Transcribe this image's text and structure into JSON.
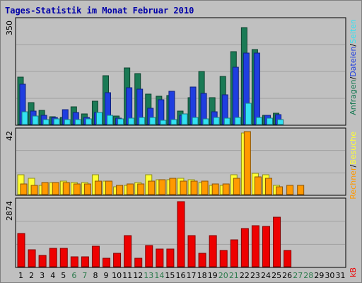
{
  "title": "Tages-Statistik im Monat Februar 2010",
  "colors": {
    "frame_bg": "#c0c0c0",
    "panel_bg": "#c0c0c0",
    "grid": "#a0a0a0",
    "weekday_label": "#000000",
    "weekend_label": "#2b7a4b",
    "anfragen": "#1a7a55",
    "dateien": "#1f3ee0",
    "seiten": "#33e2f2",
    "besuche": "#ffff33",
    "rechner": "#ff9900",
    "kb": "#ee0000"
  },
  "chart_data": [
    {
      "type": "bar",
      "name": "top",
      "ymax_label": "350",
      "ylim": [
        0,
        350
      ],
      "legend": [
        "Anfragen",
        "/",
        "Dateien",
        "/",
        "Seiten"
      ],
      "series": [
        {
          "name": "Anfragen",
          "color_key": "anfragen",
          "values": [
            160,
            75,
            48,
            27,
            25,
            60,
            35,
            80,
            165,
            28,
            192,
            172,
            102,
            95,
            98,
            46,
            90,
            180,
            90,
            163,
            248,
            328,
            255,
            31,
            38,
            0,
            0,
            0,
            0,
            0,
            0
          ]
        },
        {
          "name": "Dateien",
          "color_key": "dateien",
          "values": [
            137,
            45,
            30,
            25,
            50,
            40,
            25,
            40,
            108,
            22,
            124,
            120,
            55,
            85,
            112,
            31,
            128,
            106,
            42,
            100,
            193,
            243,
            242,
            30,
            33,
            0,
            0,
            0,
            0,
            0,
            0
          ]
        },
        {
          "name": "Seiten",
          "color_key": "seiten",
          "values": [
            42,
            28,
            16,
            20,
            16,
            17,
            18,
            40,
            30,
            20,
            22,
            25,
            25,
            15,
            16,
            35,
            25,
            20,
            25,
            22,
            25,
            72,
            25,
            22,
            17,
            0,
            0,
            0,
            0,
            0,
            0
          ]
        }
      ]
    },
    {
      "type": "bar",
      "name": "middle",
      "ymax_label": "42",
      "ylim": [
        0,
        42
      ],
      "legend": [
        "Rechner",
        "/",
        "Besuche"
      ],
      "series": [
        {
          "name": "Besuche",
          "color_key": "besuche",
          "values": [
            13,
            11,
            6,
            8,
            9,
            8,
            8,
            13,
            9,
            5,
            6,
            8,
            13,
            10,
            10,
            11,
            10,
            8,
            6,
            6,
            13,
            41,
            14,
            13,
            6,
            0,
            0,
            0,
            0,
            0,
            0
          ]
        },
        {
          "name": "Rechner",
          "color_key": "rechner",
          "values": [
            7,
            6,
            8,
            8,
            8,
            7,
            7,
            9,
            9,
            6,
            7,
            7,
            9,
            10,
            11,
            9,
            9,
            9,
            7,
            7,
            11,
            42,
            12,
            11,
            5,
            6,
            6,
            0,
            0,
            0,
            0
          ]
        }
      ]
    },
    {
      "type": "bar",
      "name": "bottom",
      "ymax_label": "2874",
      "ylim": [
        0,
        2874
      ],
      "legend": [
        "kB"
      ],
      "series": [
        {
          "name": "kB",
          "color_key": "kb",
          "values": [
            1480,
            740,
            500,
            820,
            820,
            440,
            450,
            915,
            360,
            590,
            1390,
            380,
            930,
            770,
            770,
            2874,
            1360,
            590,
            1370,
            730,
            1190,
            1700,
            1820,
            1790,
            2180,
            710,
            0,
            0,
            0,
            0,
            0
          ]
        }
      ]
    }
  ],
  "x_labels": [
    {
      "text": "1",
      "weekend": false
    },
    {
      "text": "2",
      "weekend": false
    },
    {
      "text": "3",
      "weekend": false
    },
    {
      "text": "4",
      "weekend": false
    },
    {
      "text": "5",
      "weekend": false
    },
    {
      "text": "6",
      "weekend": true
    },
    {
      "text": "7",
      "weekend": true
    },
    {
      "text": "8",
      "weekend": false
    },
    {
      "text": "9",
      "weekend": false
    },
    {
      "text": "10",
      "weekend": false
    },
    {
      "text": "11",
      "weekend": false
    },
    {
      "text": "12",
      "weekend": false
    },
    {
      "text": "13",
      "weekend": true
    },
    {
      "text": "14",
      "weekend": true
    },
    {
      "text": "15",
      "weekend": false
    },
    {
      "text": "16",
      "weekend": false
    },
    {
      "text": "17",
      "weekend": false
    },
    {
      "text": "18",
      "weekend": false
    },
    {
      "text": "19",
      "weekend": false
    },
    {
      "text": "20",
      "weekend": true
    },
    {
      "text": "21",
      "weekend": true
    },
    {
      "text": "22",
      "weekend": false
    },
    {
      "text": "23",
      "weekend": false
    },
    {
      "text": "24",
      "weekend": false
    },
    {
      "text": "25",
      "weekend": false
    },
    {
      "text": "26",
      "weekend": false
    },
    {
      "text": "27",
      "weekend": true
    },
    {
      "text": "28",
      "weekend": true
    },
    {
      "text": "29",
      "weekend": false
    },
    {
      "text": "30",
      "weekend": false
    },
    {
      "text": "31",
      "weekend": false
    }
  ]
}
